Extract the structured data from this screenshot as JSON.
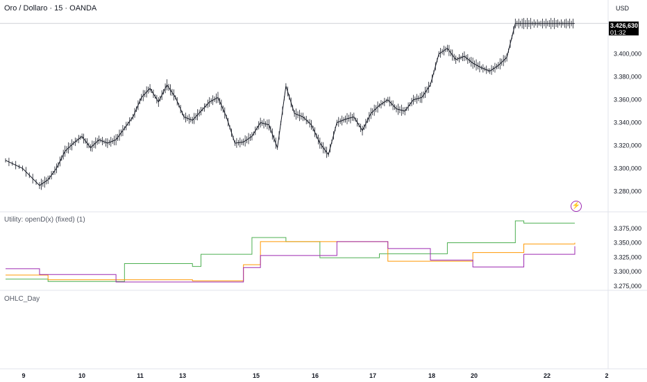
{
  "header": {
    "symbol_title": "Oro / Dollaro · 15 · OANDA",
    "currency": "USD"
  },
  "price_badge": {
    "price": "3.426,630",
    "countdown": "01:32"
  },
  "pane2": {
    "title": "Utility: openD(x) (fixed) (1)"
  },
  "pane3": {
    "title": "OHLC_Day"
  },
  "colors": {
    "price_line": "#131722",
    "green": "#4caf50",
    "orange": "#ff9800",
    "purple": "#9c27b0",
    "grid": "#e0e3eb",
    "badge_bg": "#000000"
  },
  "chart_data": [
    {
      "type": "line",
      "name": "main-price",
      "ylim": [
        3265000,
        3432000
      ],
      "ticks": [
        "3.280,000",
        "3.300,000",
        "3.320,000",
        "3.340,000",
        "3.360,000",
        "3.380,000",
        "3.400,000"
      ],
      "tick_values": [
        3280000,
        3300000,
        3320000,
        3340000,
        3360000,
        3380000,
        3400000
      ],
      "x": [
        0,
        2,
        4,
        5,
        6,
        7,
        8,
        9,
        10,
        11,
        12,
        13,
        14,
        15,
        16,
        17,
        18,
        19,
        20,
        21,
        22,
        23,
        24,
        25,
        26,
        27,
        28,
        29,
        30,
        31,
        32,
        33,
        34,
        35,
        36,
        37,
        38,
        39,
        40,
        41,
        42,
        43,
        44,
        45,
        46,
        47,
        48,
        49,
        50,
        51,
        52,
        53,
        54,
        55,
        56,
        57,
        58,
        59,
        60,
        61,
        62,
        63,
        64,
        65,
        66,
        67
      ],
      "y": [
        3307000,
        3300000,
        3285000,
        3290000,
        3300000,
        3315000,
        3322000,
        3328000,
        3318000,
        3325000,
        3322000,
        3325000,
        3335000,
        3345000,
        3362000,
        3370000,
        3358000,
        3373000,
        3362000,
        3345000,
        3342000,
        3350000,
        3358000,
        3362000,
        3345000,
        3322000,
        3323000,
        3328000,
        3340000,
        3338000,
        3318000,
        3372000,
        3348000,
        3345000,
        3338000,
        3322000,
        3312000,
        3340000,
        3343000,
        3345000,
        3333000,
        3348000,
        3355000,
        3360000,
        3352000,
        3350000,
        3360000,
        3362000,
        3373000,
        3400000,
        3405000,
        3395000,
        3398000,
        3392000,
        3388000,
        3385000,
        3390000,
        3397000,
        3426630,
        3426630,
        3426630,
        3426630,
        3426630,
        3426630,
        3426630,
        3426630
      ]
    },
    {
      "type": "line",
      "name": "openD-indicator",
      "ylim": [
        3270000,
        3400000
      ],
      "ticks": [
        "3.275,000",
        "3.300,000",
        "3.325,000",
        "3.350,000",
        "3.375,000"
      ],
      "tick_values": [
        3275000,
        3300000,
        3325000,
        3350000,
        3375000
      ],
      "series": [
        {
          "x": [
            0,
            4,
            5,
            13,
            14,
            22,
            23,
            29,
            33,
            37,
            44,
            52,
            60,
            61,
            67
          ],
          "y": [
            3287000,
            3287000,
            3283000,
            3283000,
            3314000,
            3309000,
            3330000,
            3359000,
            3352000,
            3324000,
            3331000,
            3350000,
            3388000,
            3384000,
            3384000
          ]
        },
        {
          "x": [
            0,
            4,
            5,
            13,
            22,
            28,
            30,
            39,
            45,
            50,
            55,
            61,
            67
          ],
          "y": [
            3294000,
            3294000,
            3286000,
            3286000,
            3284000,
            3312000,
            3352000,
            3352000,
            3318000,
            3318000,
            3333000,
            3348000,
            3350000
          ]
        },
        {
          "x": [
            0,
            4,
            5,
            13,
            22,
            28,
            30,
            39,
            45,
            50,
            55,
            61,
            67
          ],
          "y": [
            3305000,
            3295000,
            3295000,
            3282000,
            3282000,
            3307000,
            3328000,
            3352000,
            3340000,
            3320000,
            3308000,
            3330000,
            3344000
          ]
        }
      ]
    }
  ],
  "x_labels": [
    "9",
    "10",
    "11",
    "13",
    "15",
    "16",
    "17",
    "18",
    "20",
    "22",
    "2"
  ]
}
